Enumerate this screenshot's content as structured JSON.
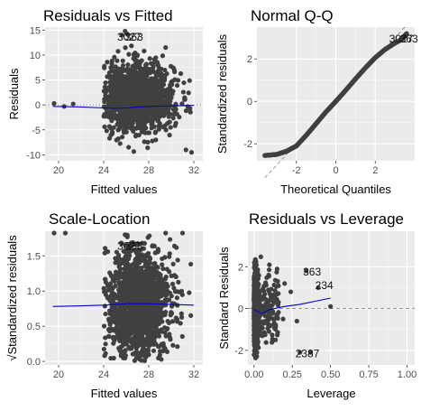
{
  "chart_data": [
    {
      "type": "scatter",
      "title": "Residuals vs Fitted",
      "xlabel": "Fitted values",
      "ylabel": "Residuals",
      "xlim": [
        18.8,
        32.8
      ],
      "ylim": [
        -11.2,
        15.6
      ],
      "xticks": [
        20,
        24,
        28,
        32
      ],
      "yticks": [
        -10,
        -5,
        0,
        5,
        10,
        15
      ],
      "grid": true,
      "reference_line": {
        "y": 0,
        "style": "dotted"
      },
      "smooth_line": {
        "color": "#0000cc",
        "x": [
          19.5,
          22,
          24,
          25,
          26,
          27,
          28,
          30,
          32
        ],
        "y": [
          -0.3,
          -0.4,
          -0.6,
          -0.7,
          -0.6,
          -0.4,
          -0.3,
          -0.2,
          -0.1
        ]
      },
      "cloud": {
        "cx": 27,
        "cy": 1.5,
        "sx": 1.6,
        "sy": 3.3,
        "n": 1500,
        "xmin": 24,
        "xmax": 31.8,
        "ymin": -10.5,
        "ymax": 12
      },
      "points": [
        {
          "x": 19.6,
          "y": 0.3
        },
        {
          "x": 20.5,
          "y": -0.3
        },
        {
          "x": 21.3,
          "y": 0.2
        },
        {
          "x": 25.9,
          "y": 14.8
        },
        {
          "x": 26.1,
          "y": 14.2
        },
        {
          "x": 25.6,
          "y": 14.0
        },
        {
          "x": 31.3,
          "y": -9.0
        },
        {
          "x": 31.8,
          "y": -9.5
        },
        {
          "x": 29.5,
          "y": 11.5
        }
      ],
      "labels": [
        {
          "text": "3027",
          "x": 25.2,
          "y": 13.6
        },
        {
          "text": "363",
          "x": 25.9,
          "y": 13.6
        }
      ]
    },
    {
      "type": "scatter",
      "title": "Normal Q-Q",
      "xlabel": "Theoretical Quantiles",
      "ylabel": "Standardized residuals",
      "xlim": [
        -4.0,
        4.0
      ],
      "ylim": [
        -2.8,
        3.5
      ],
      "xticks": [
        -2,
        0,
        2
      ],
      "yticks": [
        -2,
        0,
        2
      ],
      "grid": true,
      "reference_line": {
        "x": [
          -3.6,
          3.6
        ],
        "y": [
          -3.6,
          3.6
        ],
        "style": "dashed"
      },
      "qq_curve": {
        "x": [
          -3.6,
          -3.0,
          -2.5,
          -2.0,
          -1.5,
          -1.0,
          -0.5,
          0,
          0.5,
          1.0,
          1.5,
          2.0,
          2.5,
          3.0,
          3.3,
          3.6
        ],
        "y": [
          -2.55,
          -2.5,
          -2.35,
          -2.1,
          -1.6,
          -1.05,
          -0.5,
          0,
          0.52,
          1.06,
          1.58,
          2.06,
          2.45,
          2.75,
          2.9,
          3.2
        ]
      },
      "labels": [
        {
          "text": "3027",
          "x": 2.7,
          "y": 2.95
        },
        {
          "text": "363",
          "x": 3.25,
          "y": 2.95
        }
      ]
    },
    {
      "type": "scatter",
      "title": "Scale-Location",
      "xlabel": "Fitted values",
      "ylabel": "√Standardized residuals",
      "xlim": [
        18.8,
        32.8
      ],
      "ylim": [
        -0.05,
        1.85
      ],
      "xticks": [
        20,
        24,
        28,
        32
      ],
      "yticks": [
        0.0,
        0.5,
        1.0,
        1.5
      ],
      "grid": true,
      "smooth_line": {
        "color": "#0000cc",
        "x": [
          19.5,
          22,
          24,
          26,
          28,
          30,
          32
        ],
        "y": [
          0.78,
          0.79,
          0.8,
          0.82,
          0.82,
          0.81,
          0.8
        ]
      },
      "cloud": {
        "cx": 27,
        "cy": 0.82,
        "sx": 1.5,
        "sy": 0.4,
        "n": 1500,
        "xmin": 24,
        "xmax": 31.8,
        "ymin": 0.0,
        "ymax": 1.8
      },
      "points": [
        {
          "x": 19.6,
          "y": 1.85
        },
        {
          "x": 20.6,
          "y": 1.85
        },
        {
          "x": 25.9,
          "y": 1.8
        },
        {
          "x": 26.1,
          "y": 1.77
        },
        {
          "x": 29.5,
          "y": 1.85
        },
        {
          "x": 31.0,
          "y": 1.85
        }
      ],
      "labels": [
        {
          "text": "3027",
          "x": 25.2,
          "y": 1.64
        },
        {
          "text": "363",
          "x": 25.9,
          "y": 1.64
        }
      ]
    },
    {
      "type": "scatter",
      "title": "Residuals vs Leverage",
      "xlabel": "Leverage",
      "ylabel": "Standard Residuals",
      "xlim": [
        -0.04,
        1.05
      ],
      "ylim": [
        -2.7,
        3.7
      ],
      "xticks": [
        0.0,
        0.25,
        0.5,
        0.75,
        1.0
      ],
      "xtick_labels": [
        "0.00",
        "0.25",
        "0.50",
        "0.75",
        "1.00"
      ],
      "yticks": [
        -2,
        0,
        2
      ],
      "grid": true,
      "reference_line": {
        "y": 0,
        "style": "dashed"
      },
      "smooth_line": {
        "color": "#0000cc",
        "x": [
          0.0,
          0.05,
          0.1,
          0.2,
          0.3,
          0.4,
          0.5
        ],
        "y": [
          -0.05,
          -0.25,
          -0.05,
          0.1,
          0.2,
          0.35,
          0.5
        ]
      },
      "points": [
        {
          "x": 0.2,
          "y": 1.2
        },
        {
          "x": 0.34,
          "y": 1.8
        },
        {
          "x": 0.42,
          "y": 1.0
        },
        {
          "x": 0.5,
          "y": 0.1
        },
        {
          "x": 0.3,
          "y": -2.1
        },
        {
          "x": 0.37,
          "y": -2.1
        },
        {
          "x": 0.24,
          "y": 0.8
        },
        {
          "x": 0.28,
          "y": -0.6
        },
        {
          "x": 0.16,
          "y": 0.3
        },
        {
          "x": 0.19,
          "y": -0.5
        }
      ],
      "labels": [
        {
          "text": "363",
          "x": 0.32,
          "y": 1.75
        },
        {
          "text": "234",
          "x": 0.4,
          "y": 1.1
        },
        {
          "text": "2387",
          "x": 0.27,
          "y": -2.15
        }
      ]
    }
  ]
}
